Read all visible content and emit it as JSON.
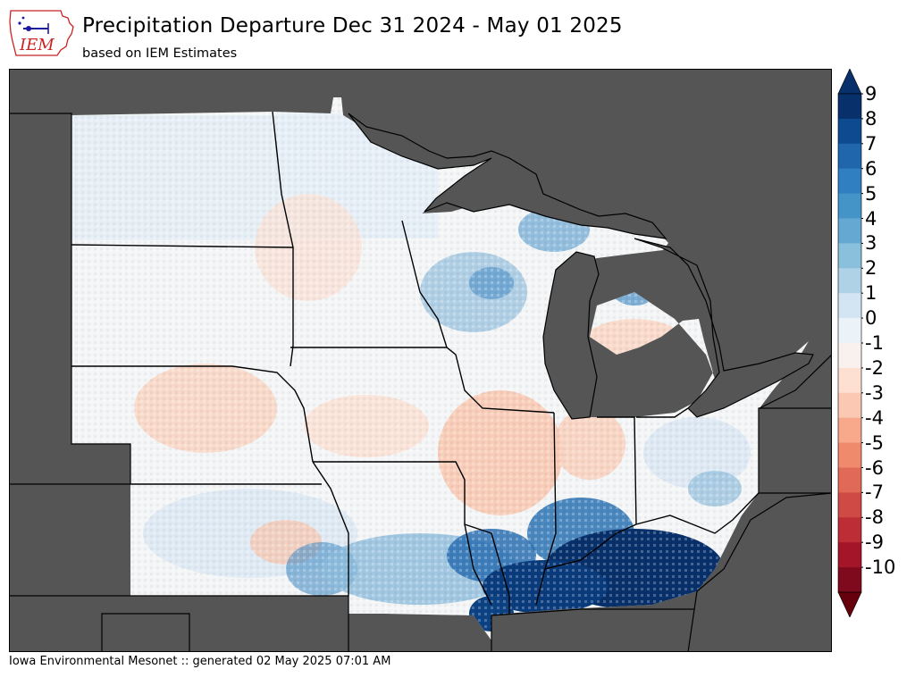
{
  "header": {
    "title": "Precipitation Departure Dec 31 2024 - May 01 2025",
    "subtitle": "based on IEM Estimates",
    "logo_text": "IEM"
  },
  "footer": {
    "credit": "Iowa Environmental Mesonet :: generated 02 May 2025 07:01 AM"
  },
  "legend": {
    "ticks": [
      "9",
      "8",
      "7",
      "6",
      "5",
      "4",
      "3",
      "2",
      "1",
      "0",
      "-1",
      "-2",
      "-3",
      "-4",
      "-5",
      "-6",
      "-7",
      "-8",
      "-9",
      "-10"
    ],
    "colors": [
      "#08306b",
      "#0d4a8f",
      "#1f66ad",
      "#2f7fc1",
      "#4594c8",
      "#65a9d3",
      "#8bc0dd",
      "#b0d2e7",
      "#d3e4f2",
      "#ebf2f8",
      "#f8f1ee",
      "#fde0d2",
      "#fbc9b3",
      "#f8a98b",
      "#ef8a6d",
      "#e06a57",
      "#cf4a44",
      "#bd2d36",
      "#a5152a",
      "#7f0a1d"
    ],
    "extend_max_color": "#08306b",
    "extend_min_color": "#67000d"
  },
  "map": {
    "region": "Upper Midwest / Great Lakes",
    "background_color": "#555555",
    "water_color": "#555555",
    "states": [
      "South Dakota",
      "North Dakota",
      "Nebraska",
      "Kansas",
      "Minnesota",
      "Iowa",
      "Missouri",
      "Wisconsin",
      "Illinois",
      "Michigan",
      "Indiana",
      "Ohio",
      "Kentucky"
    ],
    "lakes": [
      "Lake Superior",
      "Lake Michigan",
      "Lake Huron",
      "Lake Erie"
    ]
  }
}
